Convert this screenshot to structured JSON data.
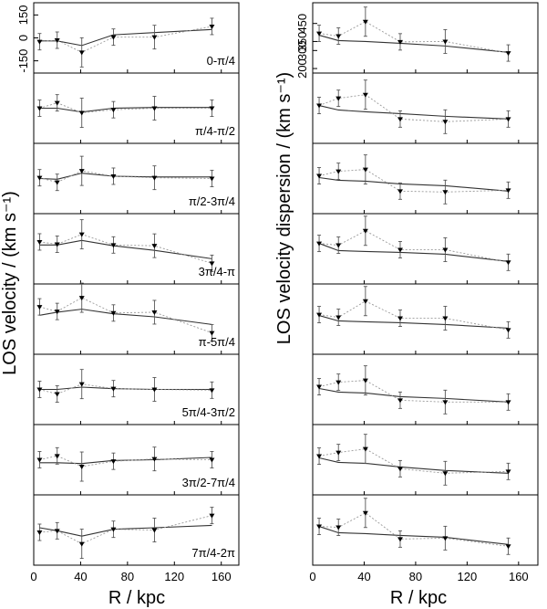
{
  "chart_data": {
    "type": "line",
    "xlabel": "R / kpc",
    "xlim": [
      0,
      175
    ],
    "xticks": [
      "0",
      "40",
      "80",
      "120",
      "160"
    ],
    "x": [
      5,
      20,
      41,
      68,
      103,
      152
    ],
    "columns": [
      {
        "ylabel": "LOS velocity / (km s⁻¹)",
        "ylim": [
          -230,
          230
        ],
        "yticks": [
          "-150",
          "0",
          "150"
        ],
        "panels": [
          {
            "label": "0-π/4",
            "observed": [
              -25,
              -15,
              -95,
              5,
              5,
              75
            ],
            "model": [
              -20,
              -20,
              -50,
              20,
              35,
              55
            ]
          },
          {
            "label": "π/4-π/2",
            "observed": [
              0,
              35,
              -30,
              -10,
              0,
              0
            ],
            "model": [
              0,
              0,
              -25,
              0,
              5,
              5
            ]
          },
          {
            "label": "π/2-3π/4",
            "observed": [
              5,
              -25,
              50,
              15,
              5,
              0
            ],
            "model": [
              0,
              -5,
              35,
              15,
              10,
              10
            ]
          },
          {
            "label": "3π/4-π",
            "observed": [
              45,
              30,
              95,
              25,
              20,
              -95
            ],
            "model": [
              25,
              25,
              55,
              20,
              -10,
              -65
            ]
          },
          {
            "label": "π-5π/4",
            "observed": [
              80,
              50,
              140,
              40,
              45,
              -90
            ],
            "model": [
              25,
              45,
              65,
              35,
              15,
              -35
            ]
          },
          {
            "label": "5π/4-3π/2",
            "observed": [
              0,
              -30,
              35,
              5,
              0,
              -5
            ],
            "model": [
              0,
              0,
              15,
              5,
              0,
              0
            ]
          },
          {
            "label": "3π/2-7π/4",
            "observed": [
              0,
              25,
              -45,
              -10,
              5,
              0
            ],
            "model": [
              -20,
              -20,
              -25,
              -5,
              0,
              15
            ]
          },
          {
            "label": "7π/4-2π",
            "observed": [
              -15,
              -5,
              -90,
              5,
              0,
              95
            ],
            "model": [
              15,
              -5,
              -40,
              5,
              15,
              30
            ]
          }
        ]
      },
      {
        "ylabel": "LOS velocity dispersion / (km s⁻¹)",
        "ylim": [
          175,
          565
        ],
        "yticks": [
          "200",
          "300",
          "350",
          "450"
        ],
        "panels": [
          {
            "label": "",
            "observed": [
              395,
              380,
              460,
              348,
              350,
              286
            ],
            "model": [
              385,
              355,
              350,
              340,
              325,
              290
            ]
          },
          {
            "label": "",
            "observed": [
              385,
              425,
              445,
              310,
              295,
              310
            ],
            "model": [
              385,
              360,
              350,
              340,
              325,
              310
            ]
          },
          {
            "label": "",
            "observed": [
              385,
              410,
              420,
              300,
              295,
              305
            ],
            "model": [
              375,
              360,
              355,
              340,
              330,
              300
            ]
          },
          {
            "label": "",
            "observed": [
              400,
              390,
              470,
              365,
              365,
              295
            ],
            "model": [
              400,
              360,
              355,
              350,
              340,
              300
            ]
          },
          {
            "label": "",
            "observed": [
              395,
              380,
              470,
              375,
              375,
              310
            ],
            "model": [
              390,
              360,
              355,
              350,
              340,
              320
            ]
          },
          {
            "label": "",
            "observed": [
              385,
              410,
              420,
              310,
              300,
              300
            ],
            "model": [
              375,
              355,
              350,
              330,
              320,
              300
            ]
          },
          {
            "label": "",
            "observed": [
              390,
              410,
              430,
              320,
              295,
              305
            ],
            "model": [
              380,
              355,
              350,
              330,
              310,
              295
            ]
          },
          {
            "label": "",
            "observed": [
              390,
              385,
              465,
              320,
              325,
              280
            ],
            "model": [
              390,
              355,
              350,
              340,
              330,
              290
            ]
          }
        ]
      }
    ]
  }
}
